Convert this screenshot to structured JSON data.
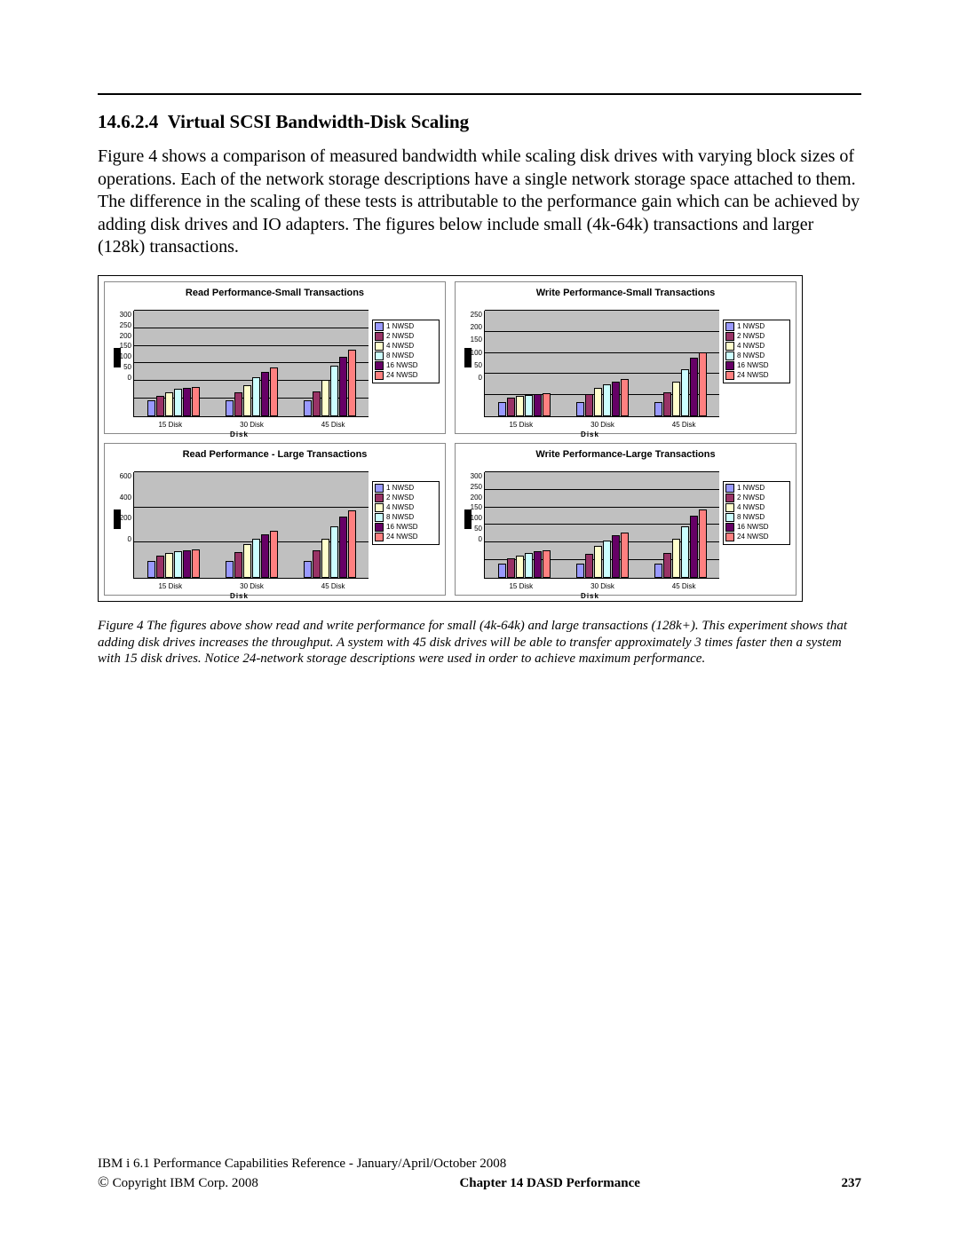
{
  "section_number": "14.6.2.4",
  "section_title": "Virtual SCSI Bandwidth-Disk Scaling",
  "paragraph": "Figure 4 shows a comparison of measured bandwidth while scaling disk drives with varying block sizes of operations. Each of the network storage descriptions have a single network storage space attached to them.  The difference in the scaling of these tests is attributable to the performance gain which can be achieved by adding disk drives and IO adapters.  The figures below include small (4k-64k) transactions and larger (128k) transactions.",
  "caption": "Figure 4 The figures above show read and write performance for small (4k-64k) and large transactions (128k+).  This experiment shows that adding disk drives increases the throughput.  A system with 45 disk drives will be able to transfer approximately 3 times faster then a system with 15 disk drives.  Notice 24-network storage descriptions were used in order to achieve maximum performance.",
  "footer": {
    "line1": "IBM i 6.1 Performance Capabilities Reference - January/April/October 2008",
    "copyright": " Copyright IBM Corp. 2008",
    "chapter": "Chapter 14  DASD Performance",
    "page": "237"
  },
  "legend": {
    "items": [
      {
        "label": "1 NWSD",
        "color": "#9999ff"
      },
      {
        "label": "2 NWSD",
        "color": "#993366"
      },
      {
        "label": "4 NWSD",
        "color": "#ffffcc"
      },
      {
        "label": "8 NWSD",
        "color": "#ccffff"
      },
      {
        "label": "16 NWSD",
        "color": "#660066"
      },
      {
        "label": "24 NWSD",
        "color": "#ff8080"
      }
    ]
  },
  "charts": [
    {
      "title": "Read Performance-Small Transactions",
      "ymax": 300,
      "ystep": 50,
      "categories": [
        "15 Disk",
        "30 Disk",
        "45 Disk"
      ],
      "xaxis_label": "Disk",
      "series_colors": [
        "#9999ff",
        "#993366",
        "#ffffcc",
        "#ccffff",
        "#660066",
        "#ff8080"
      ],
      "data": [
        [
          60,
          80,
          95,
          110,
          115,
          120
        ],
        [
          60,
          95,
          125,
          160,
          185,
          205
        ],
        [
          60,
          100,
          150,
          210,
          250,
          280
        ]
      ]
    },
    {
      "title": "Write Performance-Small Transactions",
      "ymax": 250,
      "ystep": 50,
      "categories": [
        "15 Disk",
        "30 Disk",
        "45 Disk"
      ],
      "xaxis_label": "Disk",
      "series_colors": [
        "#9999ff",
        "#993366",
        "#ffffcc",
        "#ccffff",
        "#660066",
        "#ff8080"
      ],
      "data": [
        [
          45,
          60,
          68,
          72,
          75,
          78
        ],
        [
          45,
          75,
          95,
          110,
          120,
          128
        ],
        [
          45,
          80,
          120,
          165,
          205,
          225
        ]
      ]
    },
    {
      "title": "Read Performance - Large Transactions",
      "ymax": 600,
      "ystep": 200,
      "categories": [
        "15 Disk",
        "30 Disk",
        "45 Disk"
      ],
      "xaxis_label": "Disk",
      "series_colors": [
        "#9999ff",
        "#993366",
        "#ffffcc",
        "#ccffff",
        "#660066",
        "#ff8080"
      ],
      "data": [
        [
          130,
          175,
          200,
          215,
          225,
          230
        ],
        [
          130,
          210,
          275,
          325,
          360,
          390
        ],
        [
          130,
          220,
          320,
          430,
          515,
          570
        ]
      ]
    },
    {
      "title": "Write Performance-Large Transactions",
      "ymax": 300,
      "ystep": 50,
      "categories": [
        "15 Disk",
        "30 Disk",
        "45 Disk"
      ],
      "xaxis_label": "Disk",
      "series_colors": [
        "#9999ff",
        "#993366",
        "#ffffcc",
        "#ccffff",
        "#660066",
        "#ff8080"
      ],
      "data": [
        [
          55,
          75,
          90,
          100,
          108,
          112
        ],
        [
          55,
          95,
          130,
          155,
          175,
          190
        ],
        [
          55,
          100,
          160,
          215,
          260,
          290
        ]
      ]
    }
  ]
}
